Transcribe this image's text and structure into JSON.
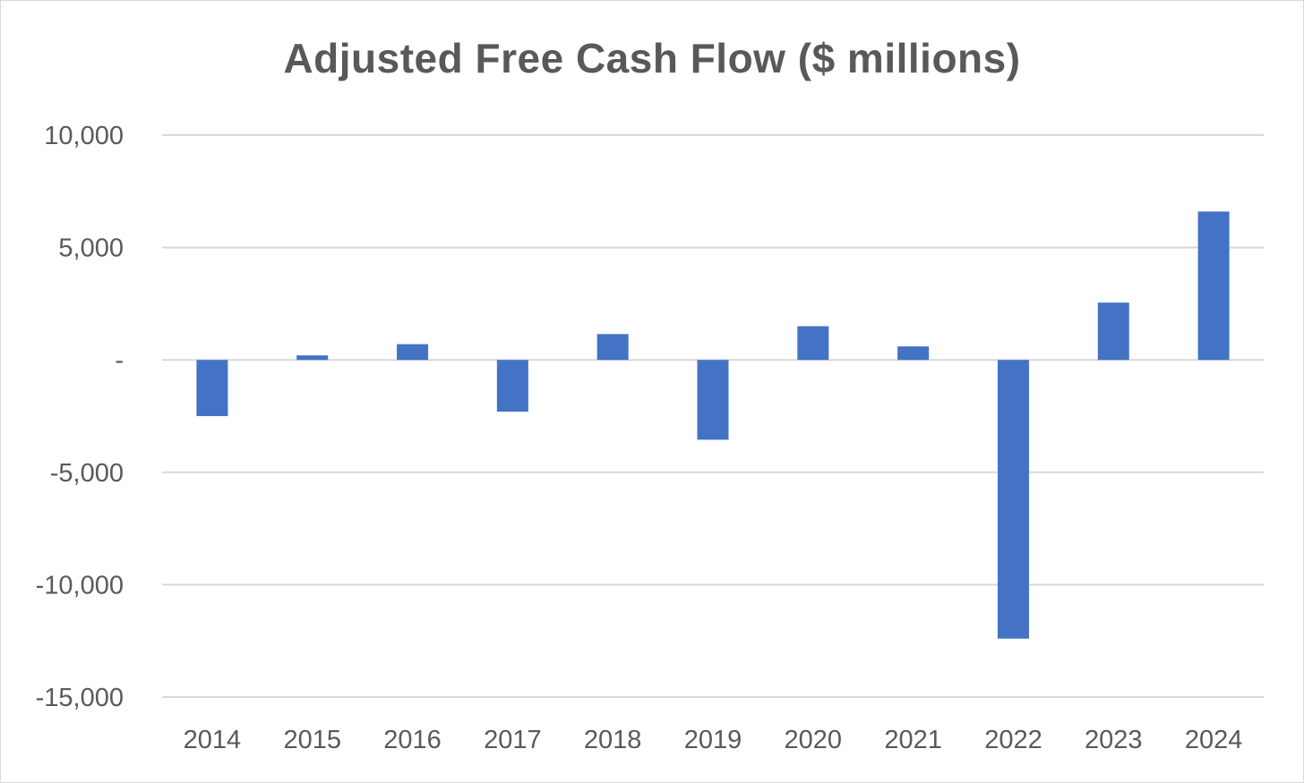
{
  "chart_data": {
    "type": "bar",
    "title": "Adjusted Free Cash Flow ($ millions)",
    "xlabel": "",
    "ylabel": "",
    "categories": [
      "2014",
      "2015",
      "2016",
      "2017",
      "2018",
      "2019",
      "2020",
      "2021",
      "2022",
      "2023",
      "2024"
    ],
    "values": [
      -2500,
      200,
      700,
      -2300,
      1150,
      -3550,
      1500,
      600,
      -12400,
      2550,
      6600
    ],
    "ylim": [
      -15000,
      10000
    ],
    "yticks": [
      10000,
      5000,
      0,
      -5000,
      -10000,
      -15000
    ],
    "ytick_labels": [
      "10,000",
      "5,000",
      "-",
      "-5,000",
      "-10,000",
      "-15,000"
    ],
    "grid": true,
    "legend": "none",
    "colors": {
      "bar": "#4472C4",
      "grid": "#d9d9d9",
      "text": "#595959"
    }
  }
}
